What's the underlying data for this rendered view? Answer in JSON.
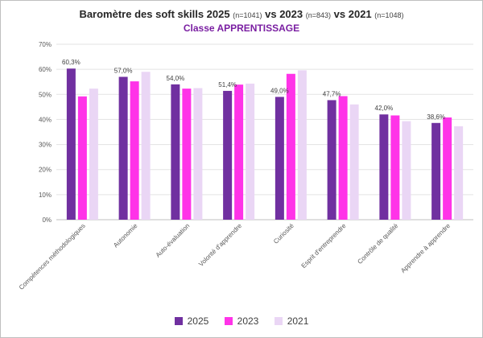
{
  "chart_data": {
    "type": "bar",
    "title": {
      "main_prefix": "Baromètre des soft skills 2025",
      "n1": "(n=1041)",
      "vs1": "vs 2023",
      "n2": "(n=843)",
      "vs2": "vs 2021",
      "n3": "(n=1048)"
    },
    "subtitle": "Classe APPRENTISSAGE",
    "categories": [
      "Compétences méthodologiques",
      "Autonomie",
      "Auto-évaluation",
      "Volonté d'apprendre",
      "Curiosité",
      "Esprit d'entreprendre",
      "Contrôle de qualité",
      "Apprendre à apprendre"
    ],
    "series": [
      {
        "name": "2025",
        "color": "#7030a0",
        "values": [
          60.3,
          57.0,
          54.0,
          51.4,
          49.0,
          47.7,
          42.0,
          38.6
        ]
      },
      {
        "name": "2023",
        "color": "#ff33e8",
        "values": [
          49.2,
          55.2,
          52.3,
          53.9,
          58.2,
          49.3,
          41.6,
          40.8
        ]
      },
      {
        "name": "2021",
        "color": "#ead6f5",
        "values": [
          52.3,
          59.0,
          52.5,
          54.3,
          59.6,
          46.0,
          39.3,
          37.3
        ]
      }
    ],
    "data_labels": [
      "60,3%",
      "57,0%",
      "54,0%",
      "51,4%",
      "49,0%",
      "47,7%",
      "42,0%",
      "38,6%"
    ],
    "ylim": [
      0,
      70
    ],
    "yticks": [
      "0%",
      "10%",
      "20%",
      "30%",
      "40%",
      "50%",
      "60%",
      "70%"
    ],
    "gridlines": true,
    "legend_position": "bottom"
  }
}
